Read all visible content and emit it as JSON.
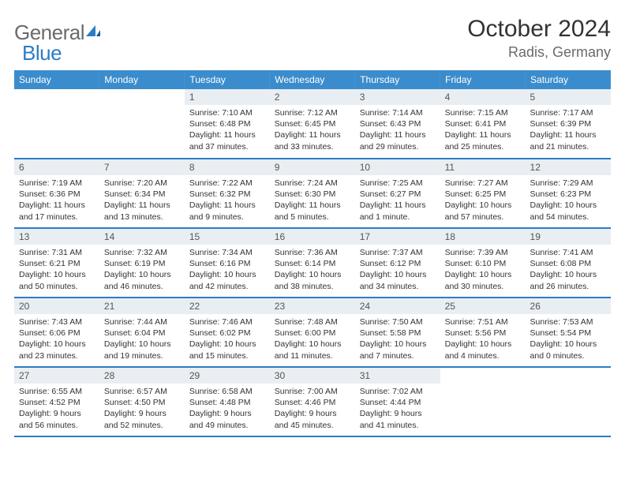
{
  "brand": {
    "name_a": "General",
    "name_b": "Blue"
  },
  "title": "October 2024",
  "location": "Radis, Germany",
  "colors": {
    "header_bg": "#3b8ccc",
    "row_divider": "#2d7dc4",
    "daynum_bg": "#e9eef3",
    "logo_gray": "#6a6a6a",
    "logo_blue": "#2d7dc4"
  },
  "weekdays": [
    "Sunday",
    "Monday",
    "Tuesday",
    "Wednesday",
    "Thursday",
    "Friday",
    "Saturday"
  ],
  "weeks": [
    [
      null,
      null,
      {
        "n": "1",
        "sunrise": "Sunrise: 7:10 AM",
        "sunset": "Sunset: 6:48 PM",
        "daylight": "Daylight: 11 hours and 37 minutes."
      },
      {
        "n": "2",
        "sunrise": "Sunrise: 7:12 AM",
        "sunset": "Sunset: 6:45 PM",
        "daylight": "Daylight: 11 hours and 33 minutes."
      },
      {
        "n": "3",
        "sunrise": "Sunrise: 7:14 AM",
        "sunset": "Sunset: 6:43 PM",
        "daylight": "Daylight: 11 hours and 29 minutes."
      },
      {
        "n": "4",
        "sunrise": "Sunrise: 7:15 AM",
        "sunset": "Sunset: 6:41 PM",
        "daylight": "Daylight: 11 hours and 25 minutes."
      },
      {
        "n": "5",
        "sunrise": "Sunrise: 7:17 AM",
        "sunset": "Sunset: 6:39 PM",
        "daylight": "Daylight: 11 hours and 21 minutes."
      }
    ],
    [
      {
        "n": "6",
        "sunrise": "Sunrise: 7:19 AM",
        "sunset": "Sunset: 6:36 PM",
        "daylight": "Daylight: 11 hours and 17 minutes."
      },
      {
        "n": "7",
        "sunrise": "Sunrise: 7:20 AM",
        "sunset": "Sunset: 6:34 PM",
        "daylight": "Daylight: 11 hours and 13 minutes."
      },
      {
        "n": "8",
        "sunrise": "Sunrise: 7:22 AM",
        "sunset": "Sunset: 6:32 PM",
        "daylight": "Daylight: 11 hours and 9 minutes."
      },
      {
        "n": "9",
        "sunrise": "Sunrise: 7:24 AM",
        "sunset": "Sunset: 6:30 PM",
        "daylight": "Daylight: 11 hours and 5 minutes."
      },
      {
        "n": "10",
        "sunrise": "Sunrise: 7:25 AM",
        "sunset": "Sunset: 6:27 PM",
        "daylight": "Daylight: 11 hours and 1 minute."
      },
      {
        "n": "11",
        "sunrise": "Sunrise: 7:27 AM",
        "sunset": "Sunset: 6:25 PM",
        "daylight": "Daylight: 10 hours and 57 minutes."
      },
      {
        "n": "12",
        "sunrise": "Sunrise: 7:29 AM",
        "sunset": "Sunset: 6:23 PM",
        "daylight": "Daylight: 10 hours and 54 minutes."
      }
    ],
    [
      {
        "n": "13",
        "sunrise": "Sunrise: 7:31 AM",
        "sunset": "Sunset: 6:21 PM",
        "daylight": "Daylight: 10 hours and 50 minutes."
      },
      {
        "n": "14",
        "sunrise": "Sunrise: 7:32 AM",
        "sunset": "Sunset: 6:19 PM",
        "daylight": "Daylight: 10 hours and 46 minutes."
      },
      {
        "n": "15",
        "sunrise": "Sunrise: 7:34 AM",
        "sunset": "Sunset: 6:16 PM",
        "daylight": "Daylight: 10 hours and 42 minutes."
      },
      {
        "n": "16",
        "sunrise": "Sunrise: 7:36 AM",
        "sunset": "Sunset: 6:14 PM",
        "daylight": "Daylight: 10 hours and 38 minutes."
      },
      {
        "n": "17",
        "sunrise": "Sunrise: 7:37 AM",
        "sunset": "Sunset: 6:12 PM",
        "daylight": "Daylight: 10 hours and 34 minutes."
      },
      {
        "n": "18",
        "sunrise": "Sunrise: 7:39 AM",
        "sunset": "Sunset: 6:10 PM",
        "daylight": "Daylight: 10 hours and 30 minutes."
      },
      {
        "n": "19",
        "sunrise": "Sunrise: 7:41 AM",
        "sunset": "Sunset: 6:08 PM",
        "daylight": "Daylight: 10 hours and 26 minutes."
      }
    ],
    [
      {
        "n": "20",
        "sunrise": "Sunrise: 7:43 AM",
        "sunset": "Sunset: 6:06 PM",
        "daylight": "Daylight: 10 hours and 23 minutes."
      },
      {
        "n": "21",
        "sunrise": "Sunrise: 7:44 AM",
        "sunset": "Sunset: 6:04 PM",
        "daylight": "Daylight: 10 hours and 19 minutes."
      },
      {
        "n": "22",
        "sunrise": "Sunrise: 7:46 AM",
        "sunset": "Sunset: 6:02 PM",
        "daylight": "Daylight: 10 hours and 15 minutes."
      },
      {
        "n": "23",
        "sunrise": "Sunrise: 7:48 AM",
        "sunset": "Sunset: 6:00 PM",
        "daylight": "Daylight: 10 hours and 11 minutes."
      },
      {
        "n": "24",
        "sunrise": "Sunrise: 7:50 AM",
        "sunset": "Sunset: 5:58 PM",
        "daylight": "Daylight: 10 hours and 7 minutes."
      },
      {
        "n": "25",
        "sunrise": "Sunrise: 7:51 AM",
        "sunset": "Sunset: 5:56 PM",
        "daylight": "Daylight: 10 hours and 4 minutes."
      },
      {
        "n": "26",
        "sunrise": "Sunrise: 7:53 AM",
        "sunset": "Sunset: 5:54 PM",
        "daylight": "Daylight: 10 hours and 0 minutes."
      }
    ],
    [
      {
        "n": "27",
        "sunrise": "Sunrise: 6:55 AM",
        "sunset": "Sunset: 4:52 PM",
        "daylight": "Daylight: 9 hours and 56 minutes."
      },
      {
        "n": "28",
        "sunrise": "Sunrise: 6:57 AM",
        "sunset": "Sunset: 4:50 PM",
        "daylight": "Daylight: 9 hours and 52 minutes."
      },
      {
        "n": "29",
        "sunrise": "Sunrise: 6:58 AM",
        "sunset": "Sunset: 4:48 PM",
        "daylight": "Daylight: 9 hours and 49 minutes."
      },
      {
        "n": "30",
        "sunrise": "Sunrise: 7:00 AM",
        "sunset": "Sunset: 4:46 PM",
        "daylight": "Daylight: 9 hours and 45 minutes."
      },
      {
        "n": "31",
        "sunrise": "Sunrise: 7:02 AM",
        "sunset": "Sunset: 4:44 PM",
        "daylight": "Daylight: 9 hours and 41 minutes."
      },
      null,
      null
    ]
  ]
}
